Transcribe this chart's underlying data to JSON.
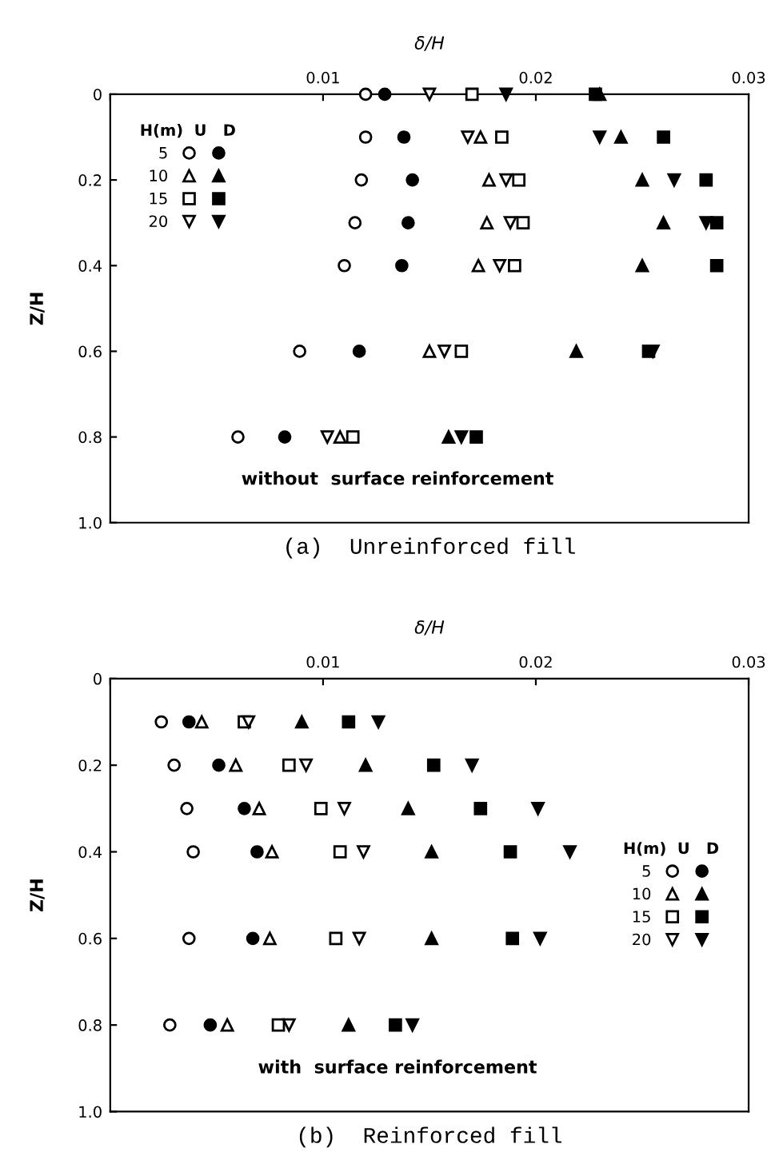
{
  "chart_data": [
    {
      "type": "scatter",
      "title": "(a)  Unreinforced fill",
      "xlabel": "δ/H",
      "ylabel": "Z/H",
      "legend_title": "H(m)  U   D",
      "annotations": [
        "without  surface reinforcement"
      ],
      "xlim": [
        0,
        0.03
      ],
      "xticks": [
        {
          "value": 0,
          "label": null
        },
        0.01,
        0.02,
        0.03
      ],
      "ylim": [
        1,
        0
      ],
      "yticks": [
        0,
        0.2,
        0.4,
        0.6,
        0.8,
        {
          "value": 1,
          "label": "1.0"
        }
      ],
      "legend": "top left",
      "grid": false,
      "series": [
        {
          "name": "5",
          "marker": "circle",
          "color": "#ffffff",
          "x": [
            0.012,
            0.012,
            0.0118,
            0.0115,
            0.011,
            0.0089,
            0.006
          ],
          "values": [
            0,
            0.1,
            0.2,
            0.3,
            0.4,
            0.6,
            0.8
          ]
        },
        {
          "marker": "circle",
          "color": "#000000",
          "x": [
            0.0129,
            0.0138,
            0.0142,
            0.014,
            0.0137,
            0.0117,
            0.0082
          ],
          "values": [
            0,
            0.1,
            0.2,
            0.3,
            0.4,
            0.6,
            0.8
          ]
        },
        {
          "name": "10",
          "marker": "triangle",
          "color": "#ffffff",
          "x": [
            0.0174,
            0.0178,
            0.0177,
            0.0173,
            0.015,
            0.0108
          ],
          "values": [
            0.1,
            0.2,
            0.3,
            0.4,
            0.6,
            0.8
          ]
        },
        {
          "marker": "triangle",
          "color": "#000000",
          "x": [
            0.023,
            0.024,
            0.025,
            0.026,
            0.025,
            0.0219,
            0.0159
          ],
          "values": [
            0,
            0.1,
            0.2,
            0.3,
            0.4,
            0.6,
            0.8
          ]
        },
        {
          "name": "15",
          "marker": "square",
          "color": "#ffffff",
          "x": [
            0.017,
            0.0184,
            0.0192,
            0.0194,
            0.019,
            0.0165,
            0.0114
          ],
          "values": [
            0,
            0.1,
            0.2,
            0.3,
            0.4,
            0.6,
            0.8
          ]
        },
        {
          "marker": "square",
          "color": "#000000",
          "x": [
            0.0228,
            0.026,
            0.028,
            0.0285,
            0.0285,
            0.0253,
            0.0172
          ],
          "values": [
            0,
            0.1,
            0.2,
            0.3,
            0.4,
            0.6,
            0.8
          ]
        },
        {
          "name": "20",
          "color": "#ffffff",
          "x": [
            0.015,
            0.0168,
            0.0186,
            0.0188,
            0.0183,
            0.0157,
            0.0102
          ],
          "values": [
            0,
            0.1,
            0.2,
            0.3,
            0.4,
            0.6,
            0.8
          ]
        },
        {
          "color": "#000000",
          "x": [
            0.0186,
            0.023,
            0.0265,
            0.028,
            0.0255,
            0.0165
          ],
          "values": [
            0,
            0.1,
            0.2,
            0.3,
            0.6,
            0.8
          ]
        }
      ]
    },
    {
      "type": "scatter",
      "title": "(b)  Reinforced fill",
      "xlabel": "δ/H",
      "ylabel": "Z/H",
      "legend_title": "H(m)  U   D",
      "annotations": [
        "with  surface reinforcement"
      ],
      "xlim": [
        0,
        0.03
      ],
      "xticks": [
        {
          "value": 0,
          "label": null
        },
        0.01,
        0.02,
        0.03
      ],
      "ylim": [
        1,
        0
      ],
      "yticks": [
        0,
        0.2,
        0.4,
        0.6,
        0.8,
        {
          "value": 1,
          "label": "1.0"
        }
      ],
      "legend": "right",
      "grid": false,
      "series": [
        {
          "name": "5",
          "marker": "circle",
          "color": "#ffffff",
          "x": [
            0.0024,
            0.003,
            0.0036,
            0.0039,
            0.0037,
            0.0028
          ],
          "values": [
            0.1,
            0.2,
            0.3,
            0.4,
            0.6,
            0.8
          ]
        },
        {
          "marker": "circle",
          "color": "#000000",
          "x": [
            0.0037,
            0.0051,
            0.0063,
            0.0069,
            0.0067,
            0.0047
          ],
          "values": [
            0.1,
            0.2,
            0.3,
            0.4,
            0.6,
            0.8
          ]
        },
        {
          "name": "10",
          "marker": "triangle",
          "color": "#ffffff",
          "x": [
            0.0043,
            0.0059,
            0.007,
            0.0076,
            0.0075,
            0.0055
          ],
          "values": [
            0.1,
            0.2,
            0.3,
            0.4,
            0.6,
            0.8
          ]
        },
        {
          "marker": "triangle",
          "color": "#000000",
          "x": [
            0.009,
            0.012,
            0.014,
            0.0151,
            0.0151,
            0.0112
          ],
          "values": [
            0.1,
            0.2,
            0.3,
            0.4,
            0.6,
            0.8
          ]
        },
        {
          "name": "15",
          "marker": "square",
          "color": "#ffffff",
          "x": [
            0.0063,
            0.0084,
            0.0099,
            0.0108,
            0.0106,
            0.0079
          ],
          "values": [
            0.1,
            0.2,
            0.3,
            0.4,
            0.6,
            0.8
          ]
        },
        {
          "marker": "square",
          "color": "#000000",
          "x": [
            0.0112,
            0.0152,
            0.0174,
            0.0188,
            0.0189,
            0.0134
          ],
          "values": [
            0.1,
            0.2,
            0.3,
            0.4,
            0.6,
            0.8
          ]
        },
        {
          "name": "20",
          "color": "#ffffff",
          "x": [
            0.0065,
            0.0092,
            0.011,
            0.0119,
            0.0117,
            0.0084
          ],
          "values": [
            0.1,
            0.2,
            0.3,
            0.4,
            0.6,
            0.8
          ]
        },
        {
          "color": "#000000",
          "x": [
            0.0126,
            0.017,
            0.0201,
            0.0216,
            0.0202,
            0.0142
          ],
          "values": [
            0.1,
            0.2,
            0.3,
            0.4,
            0.6,
            0.8
          ]
        }
      ]
    }
  ]
}
